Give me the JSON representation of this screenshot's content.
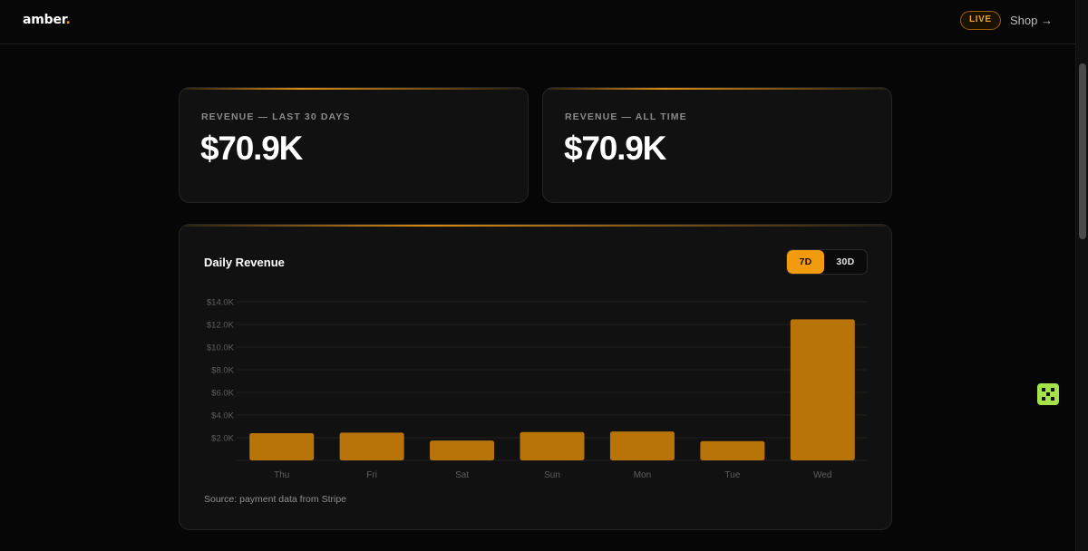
{
  "header": {
    "logo_text": "amber",
    "logo_dot": ".",
    "live_badge": "LIVE",
    "shop_link": "Shop →"
  },
  "stats": [
    {
      "label": "REVENUE — LAST 30 DAYS",
      "value": "$70.9K"
    },
    {
      "label": "REVENUE — ALL TIME",
      "value": "$70.9K"
    }
  ],
  "chart_panel": {
    "title": "Daily Revenue",
    "toggle": {
      "options": [
        "7D",
        "30D"
      ],
      "selected": "7D"
    },
    "source_note": "Source: payment data from Stripe"
  },
  "colors": {
    "accent": "#f29b0f",
    "bar": "#b87409",
    "background": "#060606",
    "card": "#111111"
  },
  "floating_widget": {
    "icon": "grid-icon"
  },
  "chart_data": {
    "type": "bar",
    "title": "Daily Revenue",
    "xlabel": "",
    "ylabel": "",
    "categories": [
      "Thu",
      "Fri",
      "Sat",
      "Sun",
      "Mon",
      "Tue",
      "Wed"
    ],
    "values": [
      2400,
      2450,
      1750,
      2500,
      2550,
      1700,
      12450
    ],
    "ylim": [
      0,
      14000
    ],
    "yticks": [
      2000,
      4000,
      6000,
      8000,
      10000,
      12000,
      14000
    ],
    "ytick_labels": [
      "$2.0K",
      "$4.0K",
      "$6.0K",
      "$8.0K",
      "$10.0K",
      "$12.0K",
      "$14.0K"
    ],
    "grid": true,
    "legend": "none"
  }
}
